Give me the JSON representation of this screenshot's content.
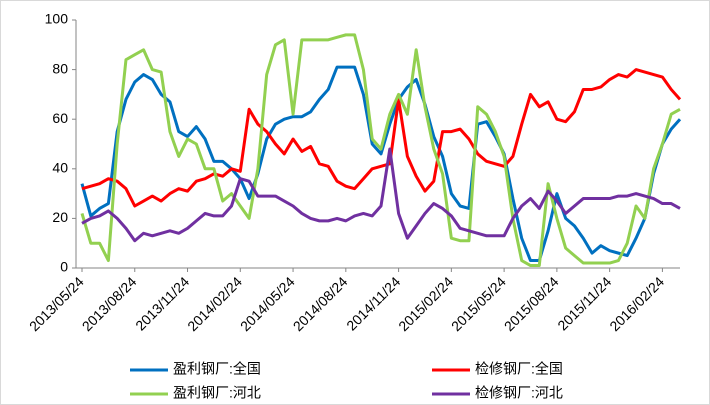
{
  "chart_data": {
    "type": "line",
    "categories": [
      "2013/05/24",
      null,
      null,
      null,
      null,
      null,
      "2013/08/24",
      null,
      null,
      null,
      null,
      null,
      "2013/11/24",
      null,
      null,
      null,
      null,
      null,
      "2014/02/24",
      null,
      null,
      null,
      null,
      null,
      "2014/05/24",
      null,
      null,
      null,
      null,
      null,
      "2014/08/24",
      null,
      null,
      null,
      null,
      null,
      "2014/11/24",
      null,
      null,
      null,
      null,
      null,
      "2015/02/24",
      null,
      null,
      null,
      null,
      null,
      "2015/05/24",
      null,
      null,
      null,
      null,
      null,
      "2015/08/24",
      null,
      null,
      null,
      null,
      null,
      "2015/11/24",
      null,
      null,
      null,
      null,
      null,
      "2016/02/24",
      null,
      null
    ],
    "series": [
      {
        "name": "盈利钢厂:全国",
        "color": "#0070c0",
        "values": [
          34,
          21,
          24,
          26,
          55,
          68,
          75,
          78,
          76,
          70,
          67,
          55,
          53,
          57,
          52,
          43,
          43,
          40,
          36,
          28,
          38,
          52,
          58,
          60,
          61,
          61,
          63,
          68,
          72,
          81,
          81,
          81,
          70,
          50,
          46,
          58,
          68,
          73,
          76,
          66,
          53,
          45,
          30,
          25,
          24,
          58,
          59,
          53,
          46,
          28,
          12,
          3,
          3,
          15,
          30,
          20,
          17,
          12,
          6,
          9,
          7,
          6,
          5,
          12,
          20,
          38,
          50,
          56,
          60
        ]
      },
      {
        "name": "检修钢厂:全国",
        "color": "#ff0000",
        "values": [
          32,
          33,
          34,
          36,
          35,
          32,
          25,
          27,
          29,
          27,
          30,
          32,
          31,
          35,
          36,
          38,
          37,
          40,
          39,
          64,
          58,
          55,
          50,
          46,
          52,
          47,
          49,
          42,
          41,
          35,
          33,
          32,
          36,
          40,
          41,
          42,
          68,
          45,
          37,
          31,
          35,
          55,
          55,
          56,
          52,
          46,
          43,
          42,
          41,
          45,
          58,
          70,
          65,
          67,
          60,
          59,
          63,
          72,
          72,
          73,
          76,
          78,
          77,
          80,
          79,
          78,
          77,
          72,
          68
        ]
      },
      {
        "name": "盈利钢厂:河北",
        "color": "#92d050",
        "values": [
          22,
          10,
          10,
          3,
          50,
          84,
          86,
          88,
          80,
          79,
          55,
          45,
          52,
          50,
          40,
          40,
          27,
          30,
          25,
          20,
          40,
          78,
          90,
          92,
          62,
          92,
          92,
          92,
          92,
          93,
          94,
          94,
          80,
          52,
          48,
          62,
          70,
          62,
          88,
          65,
          48,
          38,
          12,
          11,
          11,
          65,
          62,
          55,
          45,
          20,
          3,
          1,
          1,
          34,
          20,
          8,
          5,
          2,
          2,
          2,
          2,
          3,
          10,
          25,
          20,
          40,
          50,
          62,
          64
        ]
      },
      {
        "name": "检修钢厂:河北",
        "color": "#7030a0",
        "values": [
          18,
          20,
          21,
          23,
          20,
          16,
          11,
          14,
          13,
          14,
          15,
          14,
          16,
          19,
          22,
          21,
          21,
          25,
          36,
          35,
          29,
          29,
          29,
          27,
          25,
          22,
          20,
          19,
          19,
          20,
          19,
          21,
          22,
          21,
          25,
          48,
          22,
          12,
          17,
          22,
          26,
          24,
          21,
          16,
          15,
          14,
          13,
          13,
          13,
          20,
          25,
          28,
          24,
          31,
          27,
          22,
          25,
          28,
          28,
          28,
          28,
          29,
          29,
          30,
          29,
          28,
          26,
          26,
          24
        ]
      }
    ],
    "ylim": [
      0,
      100
    ],
    "yticks": [
      0,
      20,
      40,
      60,
      80,
      100
    ],
    "grid": false,
    "legend": "bottom"
  }
}
